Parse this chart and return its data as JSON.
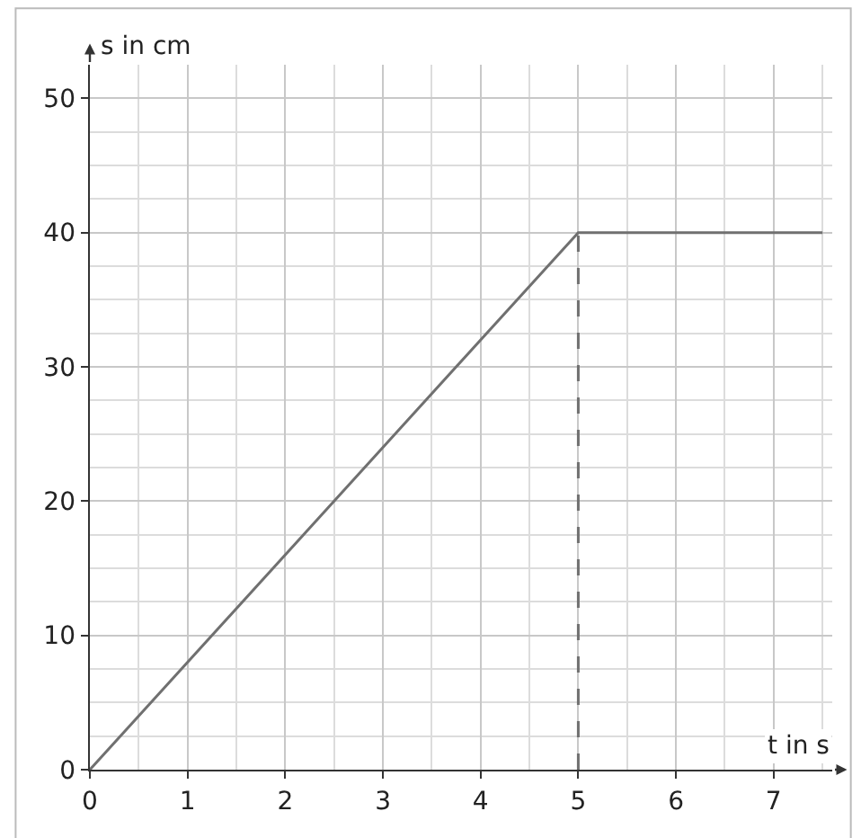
{
  "chart_data": {
    "type": "line",
    "xlabel": "t in s",
    "ylabel": "s in cm",
    "xlim": [
      0,
      7.6
    ],
    "ylim": [
      0,
      52.5
    ],
    "xticks": [
      0,
      1,
      2,
      3,
      4,
      5,
      6,
      7
    ],
    "yticks": [
      0,
      10,
      20,
      30,
      40,
      50
    ],
    "grid": true,
    "marker": "none",
    "series": [
      {
        "color": "#707070",
        "x": [
          0,
          5,
          7.5
        ],
        "values": [
          0,
          40,
          40
        ],
        "line_style": "solid"
      },
      {
        "color": "#707070",
        "x": [
          5,
          5
        ],
        "values": [
          0,
          40
        ],
        "line_style": "dashed"
      }
    ]
  }
}
